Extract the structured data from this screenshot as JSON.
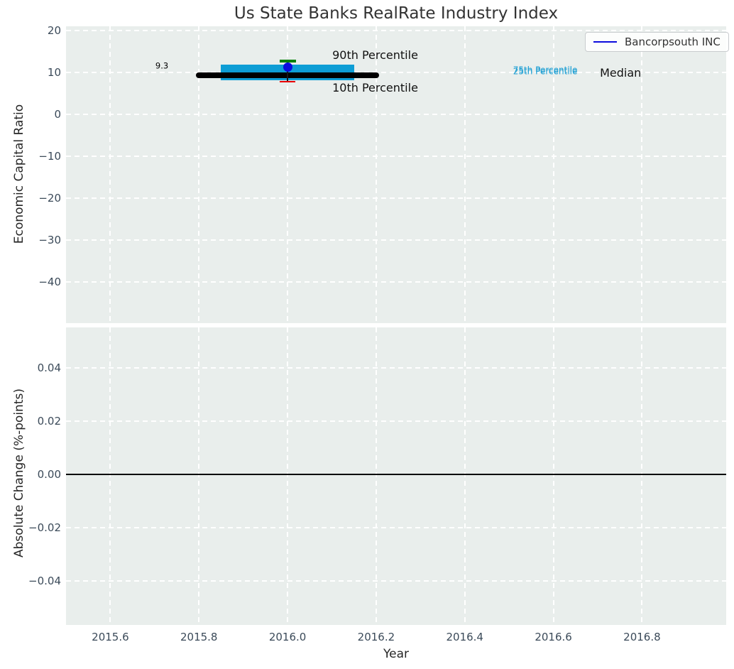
{
  "colors": {
    "figure_bg": "#ffffff",
    "plot_bg": "#e9eeec",
    "grid": "#ffffff",
    "tick_label": "#3b4a59",
    "title": "#333333",
    "company_blue": "#0b0bdd",
    "p90_green": "#008000",
    "p10_red": "#e60000",
    "iqr_cyan": "#0d9dd5",
    "median_black": "#000000"
  },
  "chart_data": [
    {
      "type": "box-timeseries",
      "title": "Us State Banks RealRate Industry Index",
      "ylabel": "Economic Capital Ratio",
      "xlabel": "Year",
      "grid": true,
      "xlim": [
        2015.5,
        2016.99
      ],
      "ylim": [
        -49.8,
        21.0
      ],
      "x_ticks": [
        {
          "v": 2015.6,
          "label": "2015.6"
        },
        {
          "v": 2015.8,
          "label": "2015.8"
        },
        {
          "v": 2016.0,
          "label": "2016.0"
        },
        {
          "v": 2016.2,
          "label": "2016.2"
        },
        {
          "v": 2016.4,
          "label": "2016.4"
        },
        {
          "v": 2016.6,
          "label": "2016.6"
        },
        {
          "v": 2016.8,
          "label": "2016.8"
        }
      ],
      "y_ticks": [
        {
          "v": 20,
          "label": "20"
        },
        {
          "v": 10,
          "label": "10"
        },
        {
          "v": 0,
          "label": "0"
        },
        {
          "v": -10,
          "label": "−10"
        },
        {
          "v": -20,
          "label": "−20"
        },
        {
          "v": -30,
          "label": "−30"
        },
        {
          "v": -40,
          "label": "−40"
        }
      ],
      "legend": {
        "label": "Bancorpsouth INC",
        "color": "#0b0bdd",
        "position": "upper right"
      },
      "industry_distribution": {
        "year": 2016.0,
        "median": 9.3,
        "median_span": [
          2015.8,
          2016.2
        ],
        "p25": 8.1,
        "p75": 11.9,
        "iqr_span": [
          2015.85,
          2016.15
        ],
        "p10": 7.8,
        "p90": 12.7
      },
      "company_point": {
        "x": 2016.0,
        "y": 11.3
      },
      "annotations": [
        {
          "text": "9.3",
          "x": 2015.731,
          "y": 11.5,
          "anchor": "end",
          "size": 11.5,
          "color": "#000000"
        },
        {
          "text": "90th Percentile",
          "x": 2016.101,
          "y": 14.0,
          "anchor": "start",
          "size": 16,
          "color": "#111111"
        },
        {
          "text": "10th Percentile",
          "x": 2016.101,
          "y": 6.3,
          "anchor": "start",
          "size": 16,
          "color": "#111111"
        },
        {
          "text": "75th Percentile",
          "x": 2016.509,
          "y": 10.45,
          "anchor": "start",
          "size": 12,
          "color": "#1b9ed3"
        },
        {
          "text": "25th Percentile",
          "x": 2016.509,
          "y": 10.15,
          "anchor": "start",
          "size": 12,
          "color": "#1b9ed3"
        },
        {
          "text": "Median",
          "x": 2016.705,
          "y": 9.8,
          "anchor": "start",
          "size": 16,
          "color": "#111111"
        }
      ]
    },
    {
      "type": "line",
      "ylabel": "Absolute Change (%-points)",
      "xlabel": "Year",
      "grid": true,
      "x_shared_with_top": true,
      "xlim": [
        2015.5,
        2016.99
      ],
      "ylim": [
        -0.0565,
        0.0552
      ],
      "y_ticks": [
        {
          "v": 0.04,
          "label": "0.04"
        },
        {
          "v": 0.02,
          "label": "0.02"
        },
        {
          "v": 0.0,
          "label": "0.00"
        },
        {
          "v": -0.02,
          "label": "−0.02"
        },
        {
          "v": -0.04,
          "label": "−0.04"
        }
      ],
      "zero_line": 0.0,
      "series": []
    }
  ]
}
